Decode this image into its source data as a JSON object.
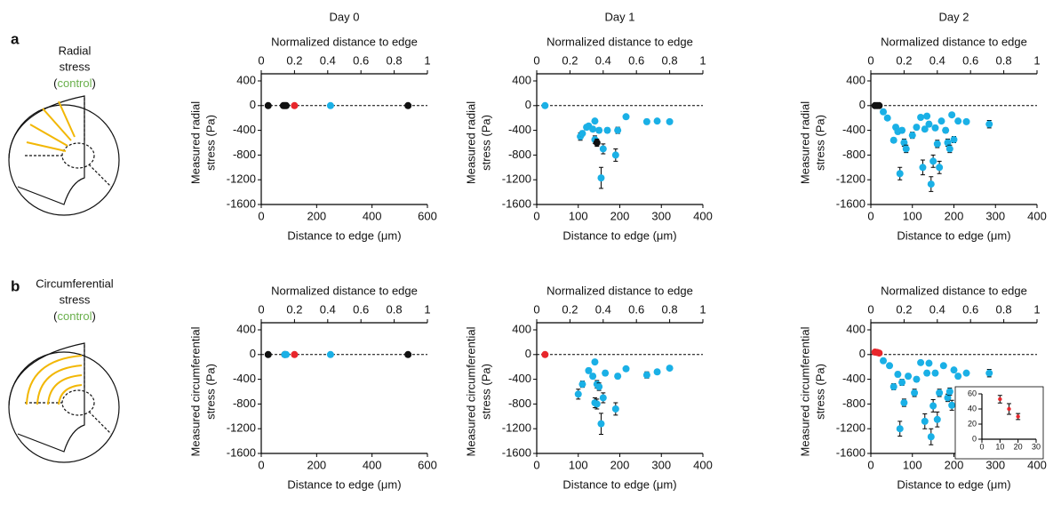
{
  "figure": {
    "panel_labels": [
      "a",
      "b"
    ],
    "schematics": [
      {
        "title_lines": [
          "Radial",
          "stress"
        ],
        "control": [
          "(",
          "control",
          ")"
        ]
      },
      {
        "title_lines": [
          "Circumferential",
          "stress"
        ],
        "control": [
          "(",
          "control",
          ")"
        ]
      }
    ]
  },
  "chart_data": [
    {
      "type": "scatter",
      "title": "Day 0",
      "x2label": "Normalized distance to edge",
      "xlabel": "Distance to edge (μm)",
      "ylabel": [
        "Measured radial",
        "stress (Pa)"
      ],
      "xlim": [
        0,
        600
      ],
      "xticks": [
        0,
        200,
        400,
        600
      ],
      "x2lim": [
        0,
        1
      ],
      "x2ticks": [
        0,
        0.2,
        0.4,
        0.6,
        0.8,
        1
      ],
      "ylim": [
        -1600,
        400
      ],
      "yticks": [
        -1600,
        -1200,
        -800,
        -400,
        0,
        400
      ],
      "hline": 0,
      "series": [
        {
          "color": "#111111",
          "x": [
            25,
            80,
            85,
            90,
            530
          ],
          "values": [
            0,
            0,
            0,
            0,
            0
          ],
          "errors": [
            10,
            10,
            10,
            10,
            10
          ]
        },
        {
          "color": "#e8262b",
          "x": [
            120
          ],
          "values": [
            0
          ],
          "errors": [
            10
          ]
        },
        {
          "color": "#1ab0e6",
          "x": [
            250
          ],
          "values": [
            0
          ],
          "errors": [
            10
          ]
        }
      ]
    },
    {
      "type": "scatter",
      "title": "Day 1",
      "x2label": "Normalized distance to edge",
      "xlabel": "Distance to edge (μm)",
      "ylabel": [
        "Measured radial",
        "stress (Pa)"
      ],
      "xlim": [
        0,
        400
      ],
      "xticks": [
        0,
        100,
        200,
        300,
        400
      ],
      "x2lim": [
        0,
        1
      ],
      "x2ticks": [
        0,
        0.2,
        0.4,
        0.6,
        0.8,
        1
      ],
      "ylim": [
        -1600,
        400
      ],
      "yticks": [
        -1600,
        -1200,
        -800,
        -400,
        0,
        400
      ],
      "hline": 0,
      "series": [
        {
          "color": "#1ab0e6",
          "x": [
            20,
            105,
            110,
            120,
            125,
            135,
            140,
            140,
            150,
            155,
            160,
            170,
            190,
            195,
            215,
            265,
            290,
            320
          ],
          "values": [
            0,
            -500,
            -450,
            -350,
            -330,
            -380,
            -550,
            -250,
            -400,
            -1170,
            -700,
            -400,
            -800,
            -400,
            -180,
            -260,
            -250,
            -260
          ],
          "errors": [
            10,
            60,
            40,
            40,
            30,
            40,
            60,
            30,
            40,
            170,
            80,
            40,
            100,
            50,
            20,
            40,
            30,
            20
          ]
        },
        {
          "color": "#111111",
          "x": [
            145
          ],
          "values": [
            -600
          ],
          "errors": [
            60
          ]
        }
      ]
    },
    {
      "type": "scatter",
      "title": "Day 2",
      "x2label": "Normalized distance to edge",
      "xlabel": "Distance to edge (μm)",
      "ylabel": [
        "Measured radial",
        "stress (Pa)"
      ],
      "xlim": [
        0,
        400
      ],
      "xticks": [
        0,
        100,
        200,
        300,
        400
      ],
      "x2lim": [
        0,
        1
      ],
      "x2ticks": [
        0,
        0.2,
        0.4,
        0.6,
        0.8,
        1
      ],
      "ylim": [
        -1600,
        400
      ],
      "yticks": [
        -1600,
        -1200,
        -800,
        -400,
        0,
        400
      ],
      "hline": 0,
      "series": [
        {
          "color": "#111111",
          "x": [
            10,
            15,
            20
          ],
          "values": [
            0,
            0,
            0
          ],
          "errors": [
            10,
            10,
            10
          ]
        },
        {
          "color": "#1ab0e6",
          "x": [
            30,
            40,
            55,
            60,
            65,
            70,
            75,
            80,
            85,
            100,
            110,
            120,
            125,
            130,
            135,
            140,
            145,
            150,
            155,
            160,
            165,
            170,
            180,
            185,
            190,
            195,
            200,
            210,
            230,
            285
          ],
          "values": [
            -100,
            -200,
            -560,
            -350,
            -420,
            -1100,
            -400,
            -600,
            -700,
            -480,
            -350,
            -190,
            -1000,
            -380,
            -170,
            -300,
            -1270,
            -900,
            -360,
            -620,
            -1000,
            -250,
            -400,
            -600,
            -700,
            -150,
            -550,
            -250,
            -260,
            -300
          ],
          "errors": [
            20,
            30,
            40,
            40,
            40,
            100,
            40,
            60,
            60,
            50,
            40,
            30,
            120,
            40,
            30,
            40,
            120,
            100,
            40,
            60,
            100,
            30,
            40,
            60,
            60,
            30,
            50,
            30,
            30,
            60
          ]
        }
      ]
    },
    {
      "type": "scatter",
      "x2label": "Normalized distance to edge",
      "xlabel": "Distance to edge (μm)",
      "ylabel": [
        "Measured circumferential",
        "stress (Pa)"
      ],
      "xlim": [
        0,
        600
      ],
      "xticks": [
        0,
        200,
        400,
        600
      ],
      "x2lim": [
        0,
        1
      ],
      "x2ticks": [
        0,
        0.2,
        0.4,
        0.6,
        0.8,
        1
      ],
      "ylim": [
        -1600,
        400
      ],
      "yticks": [
        -1600,
        -1200,
        -800,
        -400,
        0,
        400
      ],
      "hline": 0,
      "series": [
        {
          "color": "#111111",
          "x": [
            25,
            85,
            530
          ],
          "values": [
            0,
            0,
            0
          ],
          "errors": [
            10,
            10,
            10
          ]
        },
        {
          "color": "#1ab0e6",
          "x": [
            85,
            90,
            250
          ],
          "values": [
            0,
            0,
            0
          ],
          "errors": [
            10,
            10,
            10
          ]
        },
        {
          "color": "#e8262b",
          "x": [
            120
          ],
          "values": [
            0
          ],
          "errors": [
            10
          ]
        }
      ]
    },
    {
      "type": "scatter",
      "x2label": "Normalized distance to edge",
      "xlabel": "Distance to edge (μm)",
      "ylabel": [
        "Measured circumferential",
        "stress (Pa)"
      ],
      "xlim": [
        0,
        400
      ],
      "xticks": [
        0,
        100,
        200,
        300,
        400
      ],
      "x2lim": [
        0,
        1
      ],
      "x2ticks": [
        0,
        0.2,
        0.4,
        0.6,
        0.8,
        1
      ],
      "ylim": [
        -1600,
        400
      ],
      "yticks": [
        -1600,
        -1200,
        -800,
        -400,
        0,
        400
      ],
      "hline": 0,
      "series": [
        {
          "color": "#e8262b",
          "x": [
            20
          ],
          "values": [
            0
          ],
          "errors": [
            10
          ]
        },
        {
          "color": "#1ab0e6",
          "x": [
            100,
            110,
            125,
            135,
            140,
            140,
            145,
            145,
            150,
            155,
            160,
            165,
            190,
            195,
            215,
            265,
            290,
            320
          ],
          "values": [
            -640,
            -480,
            -260,
            -350,
            -780,
            -120,
            -800,
            -480,
            -520,
            -1120,
            -700,
            -300,
            -880,
            -350,
            -230,
            -330,
            -280,
            -220
          ],
          "errors": [
            80,
            50,
            40,
            40,
            80,
            20,
            80,
            60,
            60,
            170,
            80,
            40,
            100,
            40,
            30,
            50,
            30,
            20
          ]
        }
      ]
    },
    {
      "type": "scatter",
      "x2label": "Normalized distance to edge",
      "xlabel": "Distance to edge (μm)",
      "ylabel": [
        "Measured circumferential",
        "stress (Pa)"
      ],
      "xlim": [
        0,
        400
      ],
      "xticks": [
        0,
        100,
        200,
        300,
        400
      ],
      "x2lim": [
        0,
        1
      ],
      "x2ticks": [
        0,
        0.2,
        0.4,
        0.6,
        0.8,
        1
      ],
      "ylim": [
        -1600,
        400
      ],
      "yticks": [
        -1600,
        -1200,
        -800,
        -400,
        0,
        400
      ],
      "hline": 0,
      "series": [
        {
          "color": "#e8262b",
          "x": [
            10,
            15,
            20
          ],
          "values": [
            40,
            35,
            25
          ],
          "errors": [
            10,
            10,
            10
          ]
        },
        {
          "color": "#1ab0e6",
          "x": [
            30,
            45,
            55,
            65,
            70,
            75,
            80,
            90,
            105,
            110,
            120,
            130,
            135,
            140,
            145,
            150,
            155,
            160,
            165,
            175,
            185,
            190,
            195,
            200,
            210,
            230,
            285
          ],
          "values": [
            -100,
            -180,
            -520,
            -320,
            -1200,
            -450,
            -780,
            -350,
            -620,
            -400,
            -130,
            -1080,
            -300,
            -140,
            -1330,
            -830,
            -300,
            -1050,
            -620,
            -180,
            -700,
            -600,
            -820,
            -250,
            -350,
            -300,
            -300
          ],
          "errors": [
            20,
            30,
            50,
            40,
            120,
            50,
            60,
            40,
            60,
            40,
            20,
            120,
            40,
            20,
            130,
            100,
            40,
            120,
            60,
            30,
            60,
            60,
            80,
            30,
            40,
            30,
            60
          ]
        }
      ]
    },
    {
      "type": "scatter",
      "inset": true,
      "xlim": [
        0,
        30
      ],
      "xticks": [
        0,
        10,
        20,
        30
      ],
      "ylim": [
        0,
        60
      ],
      "yticks": [
        0,
        20,
        40,
        60
      ],
      "series": [
        {
          "color": "#e8262b",
          "x": [
            10,
            15,
            20
          ],
          "values": [
            53,
            40,
            30
          ],
          "errors": [
            5,
            7,
            4
          ]
        }
      ]
    }
  ]
}
